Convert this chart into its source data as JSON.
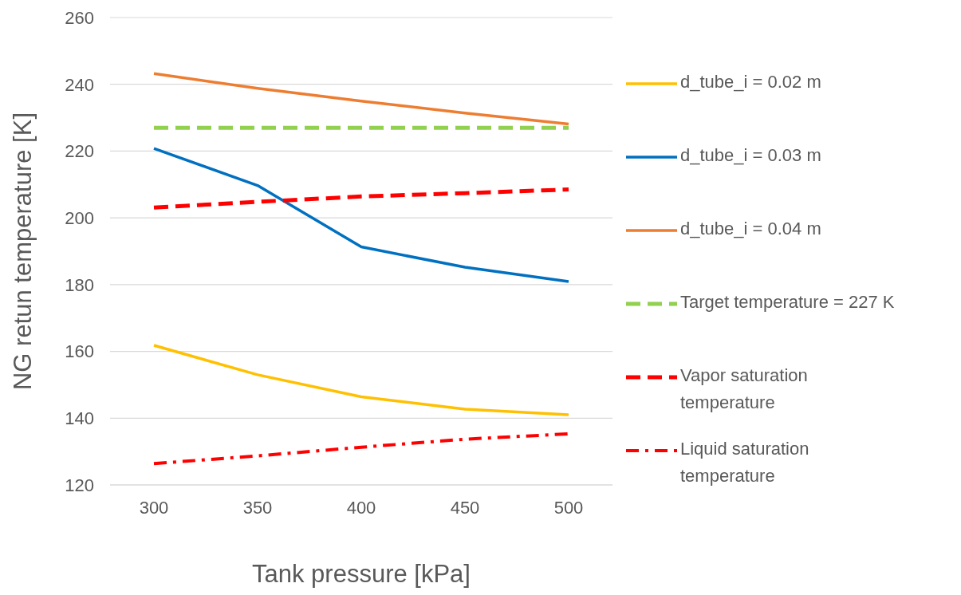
{
  "chart_data": {
    "type": "line",
    "xlabel": "Tank pressure [kPa]",
    "ylabel": "NG retun temperature [K]",
    "categories": [
      "300",
      "350",
      "400",
      "450",
      "500"
    ],
    "series": [
      {
        "name": "d_tube_i = 0.02 m",
        "color": "#ffc000",
        "values": [
          161.8,
          153,
          146.4,
          142.7,
          141
        ],
        "line_style": "solid"
      },
      {
        "name": "d_tube_i = 0.03 m",
        "color": "#0070c0",
        "values": [
          220.8,
          209.7,
          191.3,
          185.2,
          180.9
        ],
        "line_style": "solid"
      },
      {
        "name": "d_tube_i = 0.04 m",
        "color": "#ed7d31",
        "values": [
          243.2,
          238.8,
          235,
          231.4,
          228.1
        ],
        "line_style": "solid"
      },
      {
        "name": "Target temperature = 227 K",
        "color": "#92d050",
        "values": [
          227,
          227,
          227,
          227,
          227
        ],
        "line_style": "dashed"
      },
      {
        "name": "Vapor saturation temperature",
        "color": "#ff0000",
        "values": [
          203.1,
          204.8,
          206.4,
          207.4,
          208.5
        ],
        "line_style": "dashed"
      },
      {
        "name": "Liquid saturation temperature",
        "color": "#ff0000",
        "values": [
          126.4,
          128.7,
          131.3,
          133.7,
          135.3
        ],
        "line_style": "dashdot"
      }
    ],
    "ylim": [
      120,
      260
    ],
    "yticks": [
      120,
      140,
      160,
      180,
      200,
      220,
      240,
      260
    ],
    "grid": "y",
    "legend": "right",
    "marker": "none"
  }
}
